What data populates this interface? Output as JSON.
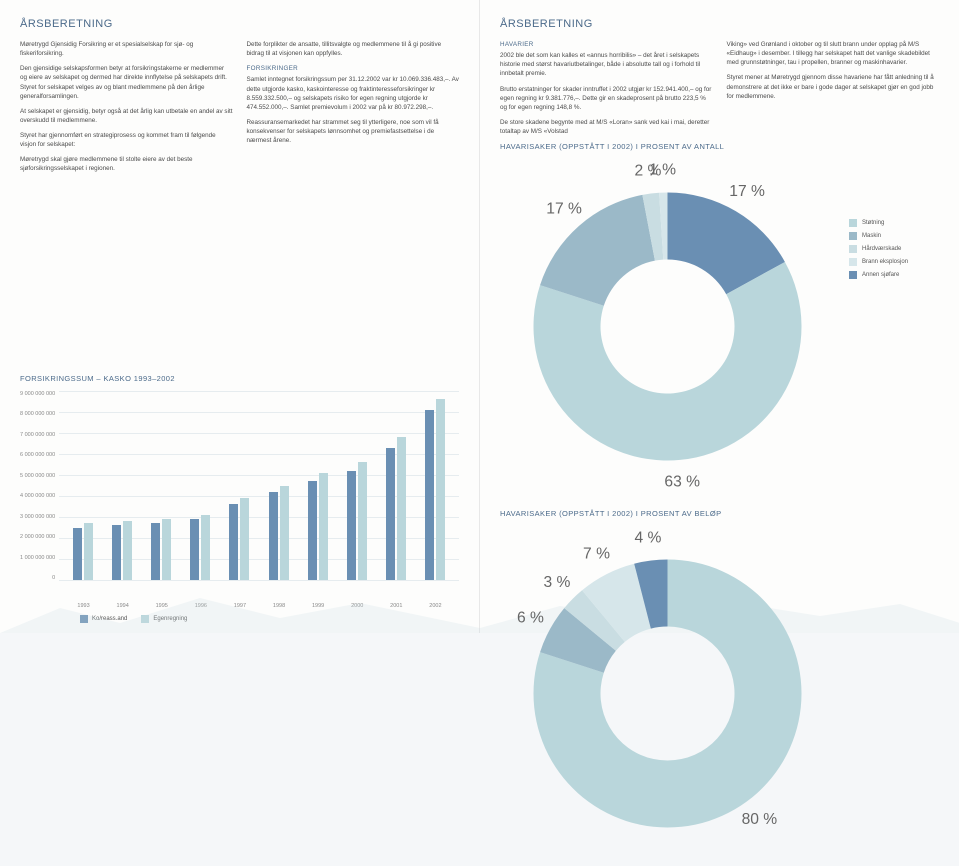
{
  "left": {
    "title": "ÅRSBERETNING",
    "col1": {
      "p1": "Møretrygd Gjensidig Forsikring er et spesialselskap for sjø- og fiskeriforsikring.",
      "p2": "Den gjensidige selskapsformen betyr at forsikringstakerne er medlemmer og eiere av selskapet og dermed har direkte innflytelse på selskapets drift. Styret for selskapet velges av og blant medlemmene på den årlige generalforsamlingen.",
      "p3": "At selskapet er gjensidig, betyr også at det årlig kan utbetale en andel av sitt overskudd til medlemmene.",
      "p4": "Styret har gjennomført en strategiprosess og kommet fram til følgende visjon for selskapet:",
      "p5": "Møretrygd skal gjøre medlemmene til stolte eiere av det beste sjøforsikringsselskapet i regionen."
    },
    "col2": {
      "p1": "Dette forplikter de ansatte, tillitsvalgte og medlemmene til å gi positive bidrag til at visjonen kan oppfylles.",
      "h1": "FORSIKRINGER",
      "p2": "Samlet inntegnet forsikringssum per 31.12.2002 var kr 10.069.336.483,–. Av dette utgjorde kasko, kaskointeresse og fraktinteresseforsikringer kr 8.559.332.500,– og selskapets risiko for egen regning utgjorde kr 474.552.000,–. Samlet premievolum i 2002 var på kr 80.972.298,–.",
      "p3": "Reassuransemarkedet har strammet seg til ytterligere, noe som vil få konsekvenser for selskapets lønnsomhet og premiefastsettelse i de nærmest årene."
    },
    "chart": {
      "title": "FORSIKRINGSSUM – KASKO 1993–2002",
      "ymax": 9000000000,
      "ystep": 1000000000,
      "ylabels": [
        "9 000 000 000",
        "8 000 000 000",
        "7 000 000 000",
        "6 000 000 000",
        "5 000 000 000",
        "4 000 000 000",
        "3 000 000 000",
        "2 000 000 000",
        "1 000 000 000",
        "0"
      ],
      "years": [
        "1993",
        "1994",
        "1995",
        "1996",
        "1997",
        "1998",
        "1999",
        "2000",
        "2001",
        "2002"
      ],
      "series": [
        {
          "name": "ko",
          "label": "Ko/reass.and",
          "color": "#6a8fb3",
          "values": [
            2500,
            2600,
            2700,
            2900,
            3600,
            4200,
            4700,
            5200,
            6300,
            8100
          ]
        },
        {
          "name": "egen",
          "label": "Egenregning",
          "color": "#b9d6db",
          "values": [
            2700,
            2800,
            2900,
            3100,
            3900,
            4500,
            5100,
            5600,
            6800,
            8600
          ]
        }
      ]
    }
  },
  "right": {
    "title": "ÅRSBERETNING",
    "col1": {
      "h1": "HAVARIER",
      "p1": "2002 ble det som kan kalles et «annus horribilis» – det året i selskapets historie med størst havariutbetalinger, både i absolutte tall og i forhold til innbetalt premie.",
      "p2": "Brutto erstatninger for skader inntruffet i 2002 utgjør kr 152.941.400,– og for egen regning kr 9.381.776,–. Dette gir en skadeprosent på brutto 223,5 % og for egen regning 148,8 %.",
      "p3": "De store skadene begynte med at M/S «Loran» sank ved kai i mai, deretter totaltap av M/S «Volstad"
    },
    "col2": {
      "p1": "Viking» ved Grønland i oktober og til slutt brann under opplag på M/S «Eidhaug» i desember. I tillegg har selskapet hatt det vanlige skadebildet med grunnstøtninger, tau i propellen, branner og maskinhavarier.",
      "p2": "Styret mener at Møretrygd gjennom disse havariene har fått anledning til å demonstrere at det ikke er bare i gode dager at selskapet gjør en god jobb for medlemmene."
    },
    "donut1": {
      "title": "HAVARISAKER (OPPSTÅTT I 2002) I PROSENT AV ANTALL",
      "slices": [
        {
          "label": "17 %",
          "value": 17,
          "color": "#6a8fb3"
        },
        {
          "label": "63 %",
          "value": 63,
          "color": "#b9d6db"
        },
        {
          "label": "17 %",
          "value": 17,
          "color": "#9bb9c8"
        },
        {
          "label": "2 %",
          "value": 2,
          "color": "#c9dde2"
        },
        {
          "label": "1 %",
          "value": 1,
          "color": "#d6e6ea"
        }
      ]
    },
    "donut2": {
      "title": "HAVARISAKER (OPPSTÅTT I 2002) I PROSENT AV BELØP",
      "slices": [
        {
          "label": "80 %",
          "value": 80,
          "color": "#b9d6db"
        },
        {
          "label": "6 %",
          "value": 6,
          "color": "#9bb9c8"
        },
        {
          "label": "3 %",
          "value": 3,
          "color": "#c9dde2"
        },
        {
          "label": "7 %",
          "value": 7,
          "color": "#d6e6ea"
        },
        {
          "label": "4 %",
          "value": 4,
          "color": "#6a8fb3"
        }
      ]
    },
    "legend": [
      {
        "label": "Støtning",
        "color": "#b9d6db"
      },
      {
        "label": "Maskin",
        "color": "#9bb9c8"
      },
      {
        "label": "Hårdværskade",
        "color": "#c9dde2"
      },
      {
        "label": "Brann eksplosjon",
        "color": "#d6e6ea"
      },
      {
        "label": "Annen sjøfare",
        "color": "#6a8fb3"
      }
    ]
  }
}
